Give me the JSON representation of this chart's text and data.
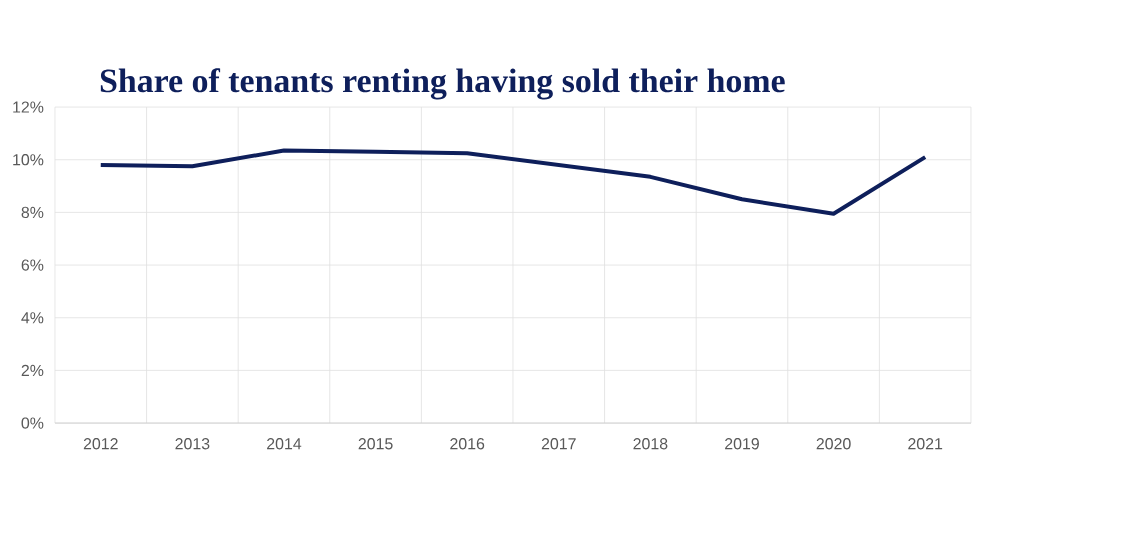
{
  "chart_data": {
    "type": "line",
    "title": "Share of tenants renting having sold their home",
    "categories": [
      "2012",
      "2013",
      "2014",
      "2015",
      "2016",
      "2017",
      "2018",
      "2019",
      "2020",
      "2021"
    ],
    "values": [
      9.8,
      9.75,
      10.35,
      10.3,
      10.25,
      9.8,
      9.35,
      8.5,
      7.95,
      10.1
    ],
    "color": "#0e1f5b",
    "ylim": [
      0,
      12
    ],
    "yticks": [
      {
        "value": 0,
        "label": "0%"
      },
      {
        "value": 2,
        "label": "2%"
      },
      {
        "value": 4,
        "label": "4%"
      },
      {
        "value": 6,
        "label": "6%"
      },
      {
        "value": 8,
        "label": "8%"
      },
      {
        "value": 10,
        "label": "10%"
      },
      {
        "value": 12,
        "label": "12%"
      }
    ],
    "grid": true,
    "marker": "none",
    "line_style": "solid"
  }
}
